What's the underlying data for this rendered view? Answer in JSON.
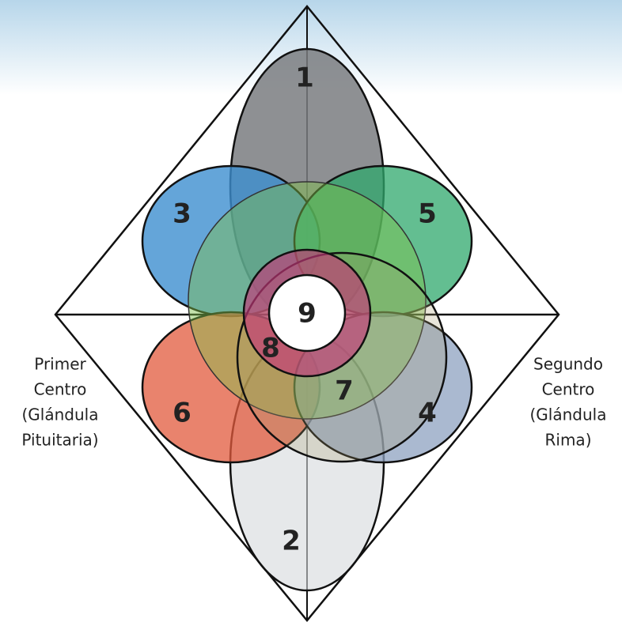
{
  "nodes": [
    {
      "label": "1"
    },
    {
      "label": "2"
    },
    {
      "label": "3"
    },
    {
      "label": "4"
    },
    {
      "label": "5"
    },
    {
      "label": "6"
    },
    {
      "label": "7"
    },
    {
      "label": "8"
    },
    {
      "label": "9"
    }
  ],
  "captions": {
    "left": [
      "Primer",
      "Centro",
      "(Glándula",
      "Pituitaria)"
    ],
    "right": [
      "Segundo",
      "Centro",
      "(Glándula",
      "Rima)"
    ]
  }
}
